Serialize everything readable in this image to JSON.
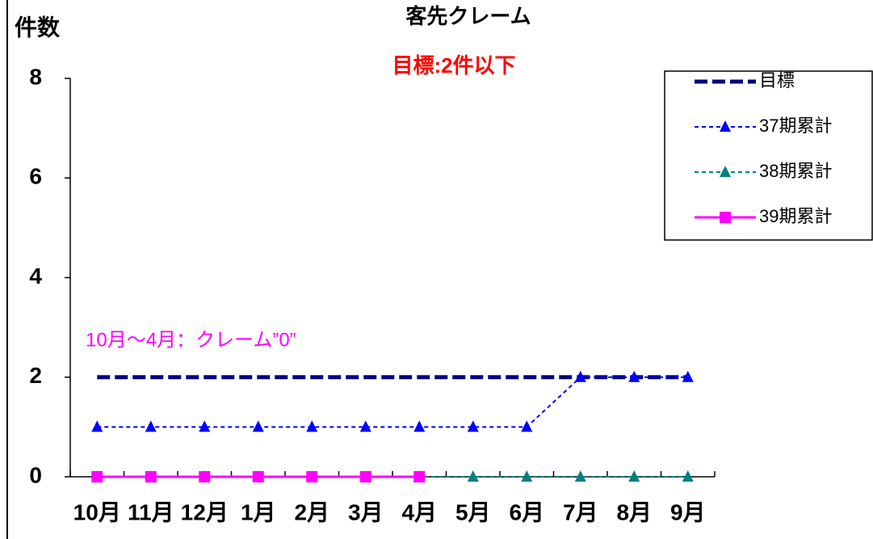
{
  "chart_data": {
    "type": "line",
    "title": "客先クレーム",
    "y_label": "件数",
    "annotations": [
      "目標:2件以下",
      "10月～4月：クレーム”0”"
    ],
    "categories": [
      "10月",
      "11月",
      "12月",
      "1月",
      "2月",
      "3月",
      "4月",
      "5月",
      "6月",
      "7月",
      "8月",
      "9月"
    ],
    "series": [
      {
        "name": "目標",
        "color": "#000080",
        "line_style": "dashed",
        "marker": "none",
        "values": [
          2,
          2,
          2,
          2,
          2,
          2,
          2,
          2,
          2,
          2,
          2,
          2
        ]
      },
      {
        "name": "37期累計",
        "color": "#0000ff",
        "line_style": "dashed",
        "marker": "triangle",
        "values": [
          1,
          1,
          1,
          1,
          1,
          1,
          1,
          1,
          1,
          2,
          2,
          2
        ]
      },
      {
        "name": "38期累計",
        "color": "#008080",
        "line_style": "dashed",
        "marker": "triangle",
        "values": [
          0,
          0,
          0,
          0,
          0,
          0,
          0,
          0,
          0,
          0,
          0,
          0
        ]
      },
      {
        "name": "39期累計",
        "color": "#ff00ff",
        "line_style": "solid",
        "marker": "square",
        "values": [
          0,
          0,
          0,
          0,
          0,
          0,
          0,
          null,
          null,
          null,
          null,
          null
        ]
      }
    ],
    "ylim": [
      0,
      8
    ],
    "yticks": [
      0,
      2,
      4,
      6,
      8
    ],
    "grid": false,
    "legend": "top-right"
  }
}
